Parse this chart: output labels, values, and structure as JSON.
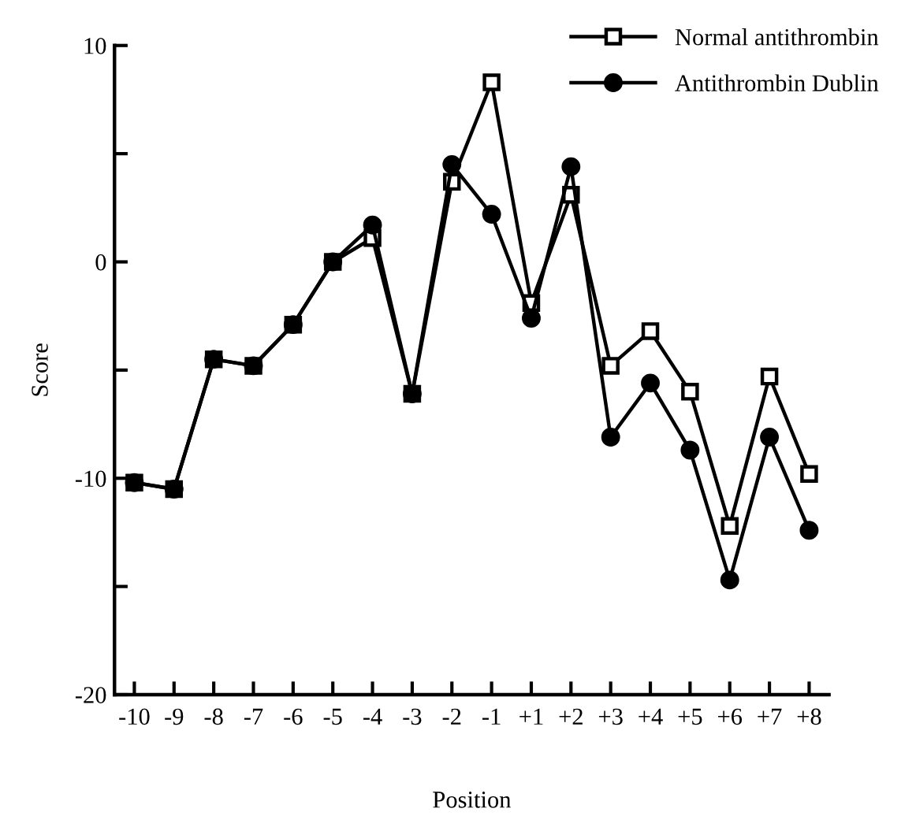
{
  "chart_data": {
    "type": "line",
    "xlabel": "Position",
    "ylabel": "Score",
    "categories": [
      "-10",
      "-9",
      "-8",
      "-7",
      "-6",
      "-5",
      "-4",
      "-3",
      "-2",
      "-1",
      "+1",
      "+2",
      "+3",
      "+4",
      "+5",
      "+6",
      "+7",
      "+8"
    ],
    "series": [
      {
        "name": "Normal antithrombin",
        "color": "#000000",
        "marker": "square",
        "values": [
          -10.2,
          -10.5,
          -4.5,
          -4.8,
          -2.9,
          0.0,
          1.1,
          -6.1,
          3.7,
          8.3,
          -1.9,
          3.1,
          -4.8,
          -3.2,
          -6.0,
          -12.2,
          -5.3,
          -9.8
        ]
      },
      {
        "name": "Antithrombin Dublin",
        "color": "#000000",
        "marker": "circle",
        "values": [
          -10.2,
          -10.5,
          -4.5,
          -4.8,
          -2.9,
          0.0,
          1.7,
          -6.1,
          4.5,
          2.2,
          -2.6,
          4.4,
          -8.1,
          -5.6,
          -8.7,
          -14.7,
          -8.1,
          -12.4
        ]
      }
    ],
    "ylim": [
      -20,
      10
    ],
    "yticks": [
      -20,
      {
        "value": -15,
        "label": null
      },
      -10,
      {
        "value": -5,
        "label": null
      },
      0,
      {
        "value": 5,
        "label": null
      },
      10
    ],
    "grid": false,
    "legend": "top right",
    "line_style": "solid"
  }
}
